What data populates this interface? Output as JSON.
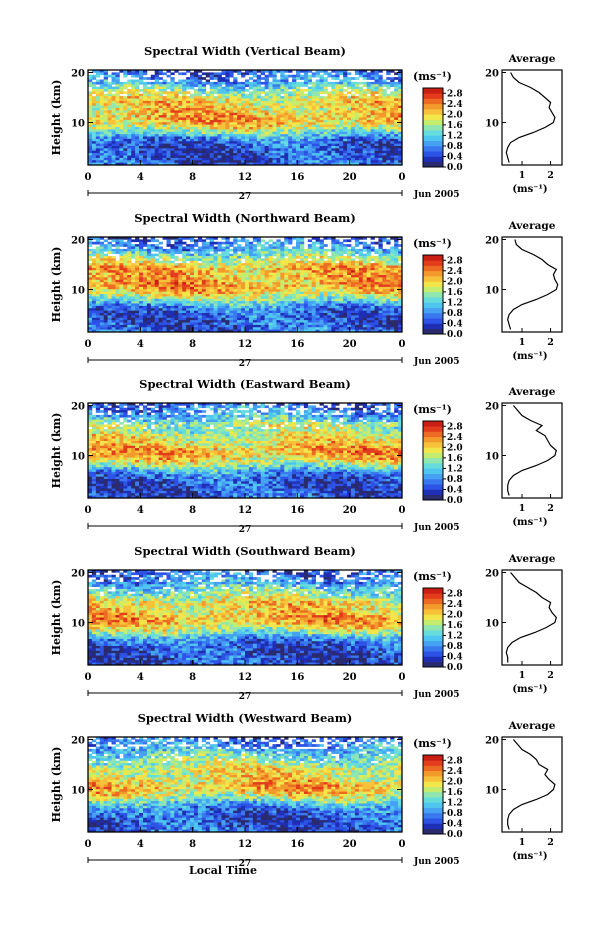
{
  "figure": {
    "xlabel_bottom": "Local Time",
    "date_label": "Jun 2005",
    "day_label": "27",
    "unit_label": "(ms⁻¹)",
    "avg_title": "Average",
    "avg_xlabel": "(ms⁻¹)",
    "ylabel": "Height (km)"
  },
  "colormap": [
    "#2a2a6e",
    "#1f2fb5",
    "#2d52e6",
    "#3a78f0",
    "#45a2f2",
    "#4fc6ef",
    "#66dcdc",
    "#8fe6b0",
    "#c4ec6e",
    "#f2e64a",
    "#f7c23a",
    "#f29a2c",
    "#ec6a22",
    "#e23c1c",
    "#c81e14"
  ],
  "chart_data": [
    {
      "type": "heatmap",
      "title": "Spectral Width (Vertical Beam)",
      "xlabel": "",
      "ylabel": "Height (km)",
      "xticks": [
        "0",
        "4",
        "8",
        "12",
        "16",
        "20",
        "0"
      ],
      "xlim": [
        0,
        24
      ],
      "yticks": [
        "10",
        "20"
      ],
      "ylim": [
        1.5,
        20.5
      ],
      "colorbar": {
        "ticks": [
          "0.0",
          "0.4",
          "0.8",
          "1.2",
          "1.6",
          "2.0",
          "2.4",
          "2.8"
        ],
        "range": [
          0,
          3.0
        ]
      },
      "average_profile": {
        "xticks": [
          "1",
          "2"
        ],
        "xlim": [
          0.3,
          2.4
        ],
        "heights": [
          2,
          3,
          4,
          5,
          6,
          7,
          8,
          9,
          10,
          11,
          12,
          13,
          14,
          15,
          16,
          17,
          18,
          19,
          20
        ],
        "values": [
          0.55,
          0.5,
          0.45,
          0.5,
          0.6,
          0.9,
          1.4,
          1.8,
          2.1,
          2.15,
          2.05,
          1.95,
          2.0,
          1.8,
          1.6,
          1.3,
          0.9,
          0.7,
          0.6
        ]
      }
    },
    {
      "type": "heatmap",
      "title": "Spectral Width (Northward Beam)",
      "xlabel": "",
      "ylabel": "Height (km)",
      "xticks": [
        "0",
        "4",
        "8",
        "12",
        "16",
        "20",
        "0"
      ],
      "xlim": [
        0,
        24
      ],
      "yticks": [
        "10",
        "20"
      ],
      "ylim": [
        1.5,
        20.5
      ],
      "colorbar": {
        "ticks": [
          "0.0",
          "0.4",
          "0.8",
          "1.2",
          "1.6",
          "2.0",
          "2.4",
          "2.8"
        ],
        "range": [
          0,
          3.0
        ]
      },
      "average_profile": {
        "xticks": [
          "1",
          "2"
        ],
        "xlim": [
          0.3,
          2.4
        ],
        "heights": [
          2,
          3,
          4,
          5,
          6,
          7,
          8,
          9,
          10,
          11,
          12,
          13,
          14,
          15,
          16,
          17,
          18,
          19,
          20
        ],
        "values": [
          0.6,
          0.55,
          0.5,
          0.55,
          0.7,
          1.0,
          1.5,
          1.9,
          2.2,
          2.25,
          2.15,
          2.1,
          2.2,
          1.9,
          1.7,
          1.4,
          1.0,
          0.8,
          0.75
        ]
      }
    },
    {
      "type": "heatmap",
      "title": "Spectral Width (Eastward Beam)",
      "xlabel": "",
      "ylabel": "Height (km)",
      "xticks": [
        "0",
        "4",
        "8",
        "12",
        "16",
        "20",
        "0"
      ],
      "xlim": [
        0,
        24
      ],
      "yticks": [
        "10",
        "20"
      ],
      "ylim": [
        1.5,
        20.5
      ],
      "colorbar": {
        "ticks": [
          "0.0",
          "0.4",
          "0.8",
          "1.2",
          "1.6",
          "2.0",
          "2.4",
          "2.8"
        ],
        "range": [
          0,
          3.0
        ]
      },
      "average_profile": {
        "xticks": [
          "1",
          "2"
        ],
        "xlim": [
          0.3,
          2.4
        ],
        "heights": [
          2,
          3,
          4,
          5,
          6,
          7,
          8,
          9,
          10,
          11,
          12,
          13,
          14,
          15,
          16,
          17,
          18,
          19,
          20
        ],
        "values": [
          0.55,
          0.5,
          0.5,
          0.55,
          0.7,
          1.0,
          1.5,
          1.9,
          2.15,
          2.2,
          2.0,
          1.9,
          1.8,
          1.5,
          1.7,
          1.3,
          1.0,
          0.85,
          0.7
        ]
      }
    },
    {
      "type": "heatmap",
      "title": "Spectral Width (Southward Beam)",
      "xlabel": "",
      "ylabel": "Height (km)",
      "xticks": [
        "0",
        "4",
        "8",
        "12",
        "16",
        "20",
        "0"
      ],
      "xlim": [
        0,
        24
      ],
      "yticks": [
        "10",
        "20"
      ],
      "ylim": [
        1.5,
        20.5
      ],
      "colorbar": {
        "ticks": [
          "0.0",
          "0.4",
          "0.8",
          "1.2",
          "1.6",
          "2.0",
          "2.4",
          "2.8"
        ],
        "range": [
          0,
          3.0
        ]
      },
      "average_profile": {
        "xticks": [
          "1",
          "2"
        ],
        "xlim": [
          0.3,
          2.4
        ],
        "heights": [
          2,
          3,
          4,
          5,
          6,
          7,
          8,
          9,
          10,
          11,
          12,
          13,
          14,
          15,
          16,
          17,
          18,
          19,
          20
        ],
        "values": [
          0.5,
          0.5,
          0.45,
          0.5,
          0.65,
          0.95,
          1.45,
          1.85,
          2.15,
          2.2,
          2.05,
          1.95,
          2.0,
          1.7,
          1.5,
          1.2,
          0.9,
          0.75,
          0.6
        ]
      }
    },
    {
      "type": "heatmap",
      "title": "Spectral Width (Westward Beam)",
      "xlabel": "Local Time",
      "ylabel": "Height (km)",
      "xticks": [
        "0",
        "4",
        "8",
        "12",
        "16",
        "20",
        "0"
      ],
      "xlim": [
        0,
        24
      ],
      "yticks": [
        "10",
        "20"
      ],
      "ylim": [
        1.5,
        20.5
      ],
      "colorbar": {
        "ticks": [
          "0.0",
          "0.4",
          "0.8",
          "1.2",
          "1.6",
          "2.0",
          "2.4",
          "2.8"
        ],
        "range": [
          0,
          3.0
        ]
      },
      "average_profile": {
        "xticks": [
          "1",
          "2"
        ],
        "xlim": [
          0.3,
          2.4
        ],
        "heights": [
          2,
          3,
          4,
          5,
          6,
          7,
          8,
          9,
          10,
          11,
          12,
          13,
          14,
          15,
          16,
          17,
          18,
          19,
          20
        ],
        "values": [
          0.55,
          0.5,
          0.5,
          0.55,
          0.7,
          1.0,
          1.5,
          1.9,
          2.1,
          2.15,
          1.95,
          1.8,
          1.9,
          1.6,
          1.5,
          1.3,
          1.0,
          0.85,
          0.7
        ]
      }
    }
  ]
}
